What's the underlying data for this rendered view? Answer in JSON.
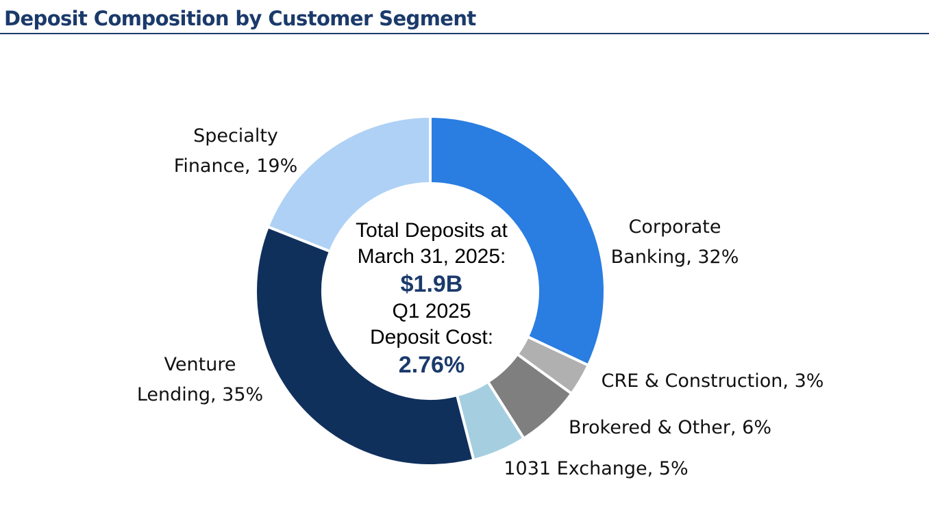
{
  "header": {
    "title": "Deposit Composition by Customer Segment"
  },
  "chart_data": {
    "type": "pie",
    "variant": "donut",
    "title": "Deposit Composition by Customer Segment",
    "series": [
      {
        "name": "Corporate Banking",
        "label_lines": [
          "Corporate",
          "Banking, 32%"
        ],
        "value": 32,
        "color": "#2a7de1"
      },
      {
        "name": "CRE & Construction",
        "label_lines": [
          "CRE & Construction, 3%"
        ],
        "value": 3,
        "color": "#b0b0b0"
      },
      {
        "name": "Brokered & Other",
        "label_lines": [
          "Brokered & Other, 6%"
        ],
        "value": 6,
        "color": "#7f7f7f"
      },
      {
        "name": "1031 Exchange",
        "label_lines": [
          "1031 Exchange, 5%"
        ],
        "value": 5,
        "color": "#a5cfe0"
      },
      {
        "name": "Venture Lending",
        "label_lines": [
          "Venture",
          "Lending, 35%"
        ],
        "value": 35,
        "color": "#10305c"
      },
      {
        "name": "Specialty Finance",
        "label_lines": [
          "Specialty",
          "Finance, 19%"
        ],
        "value": 19,
        "color": "#afd1f5"
      }
    ]
  },
  "center": {
    "line1": "Total Deposits at",
    "line2": "March 31, 2025:",
    "total": "$1.9B",
    "line3": "Q1 2025",
    "line4": "Deposit Cost:",
    "cost": "2.76%"
  }
}
